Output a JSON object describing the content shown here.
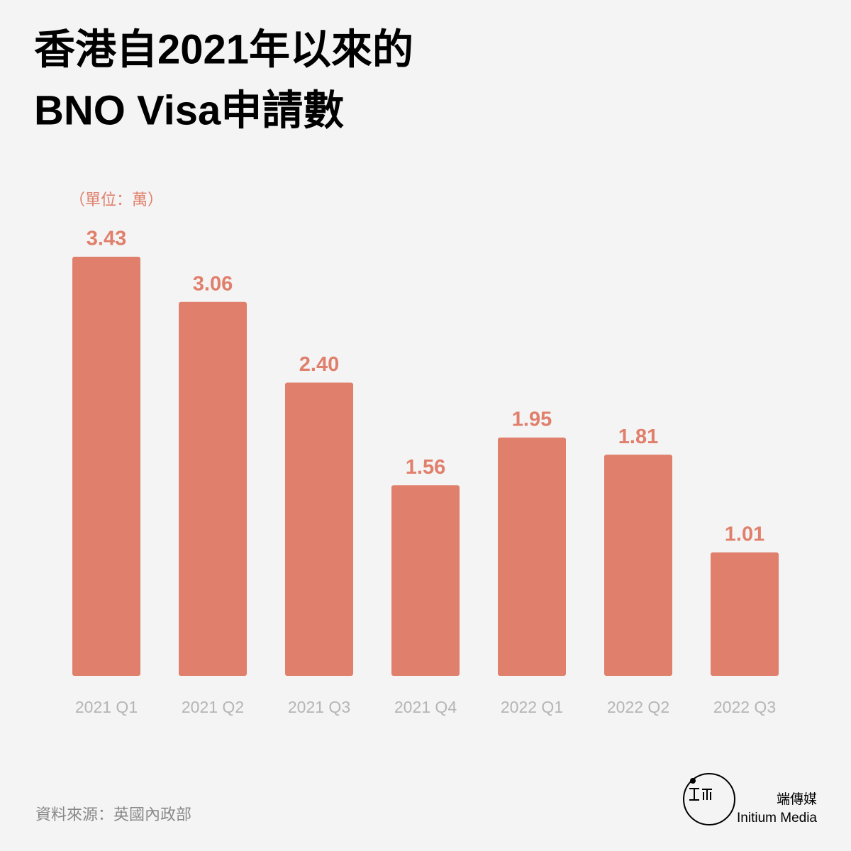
{
  "chart_data": {
    "type": "bar",
    "title": [
      "香港自2021年以來的",
      "BNO Visa申請數"
    ],
    "unit_note": "（單位：萬）",
    "categories": [
      "2021 Q1",
      "2021 Q2",
      "2021 Q3",
      "2021 Q4",
      "2022 Q1",
      "2022 Q2",
      "2022 Q3"
    ],
    "values": [
      3.43,
      3.06,
      2.4,
      1.56,
      1.95,
      1.81,
      1.01
    ],
    "value_labels": [
      "3.43",
      "3.06",
      "2.40",
      "1.56",
      "1.95",
      "1.81",
      "1.01"
    ],
    "color": "#e07f6b",
    "ylim": [
      0,
      3.5
    ],
    "source": "資料來源：英國內政部",
    "brand": {
      "name_zh": "端傳媒",
      "name_en": "Initium Media"
    }
  }
}
